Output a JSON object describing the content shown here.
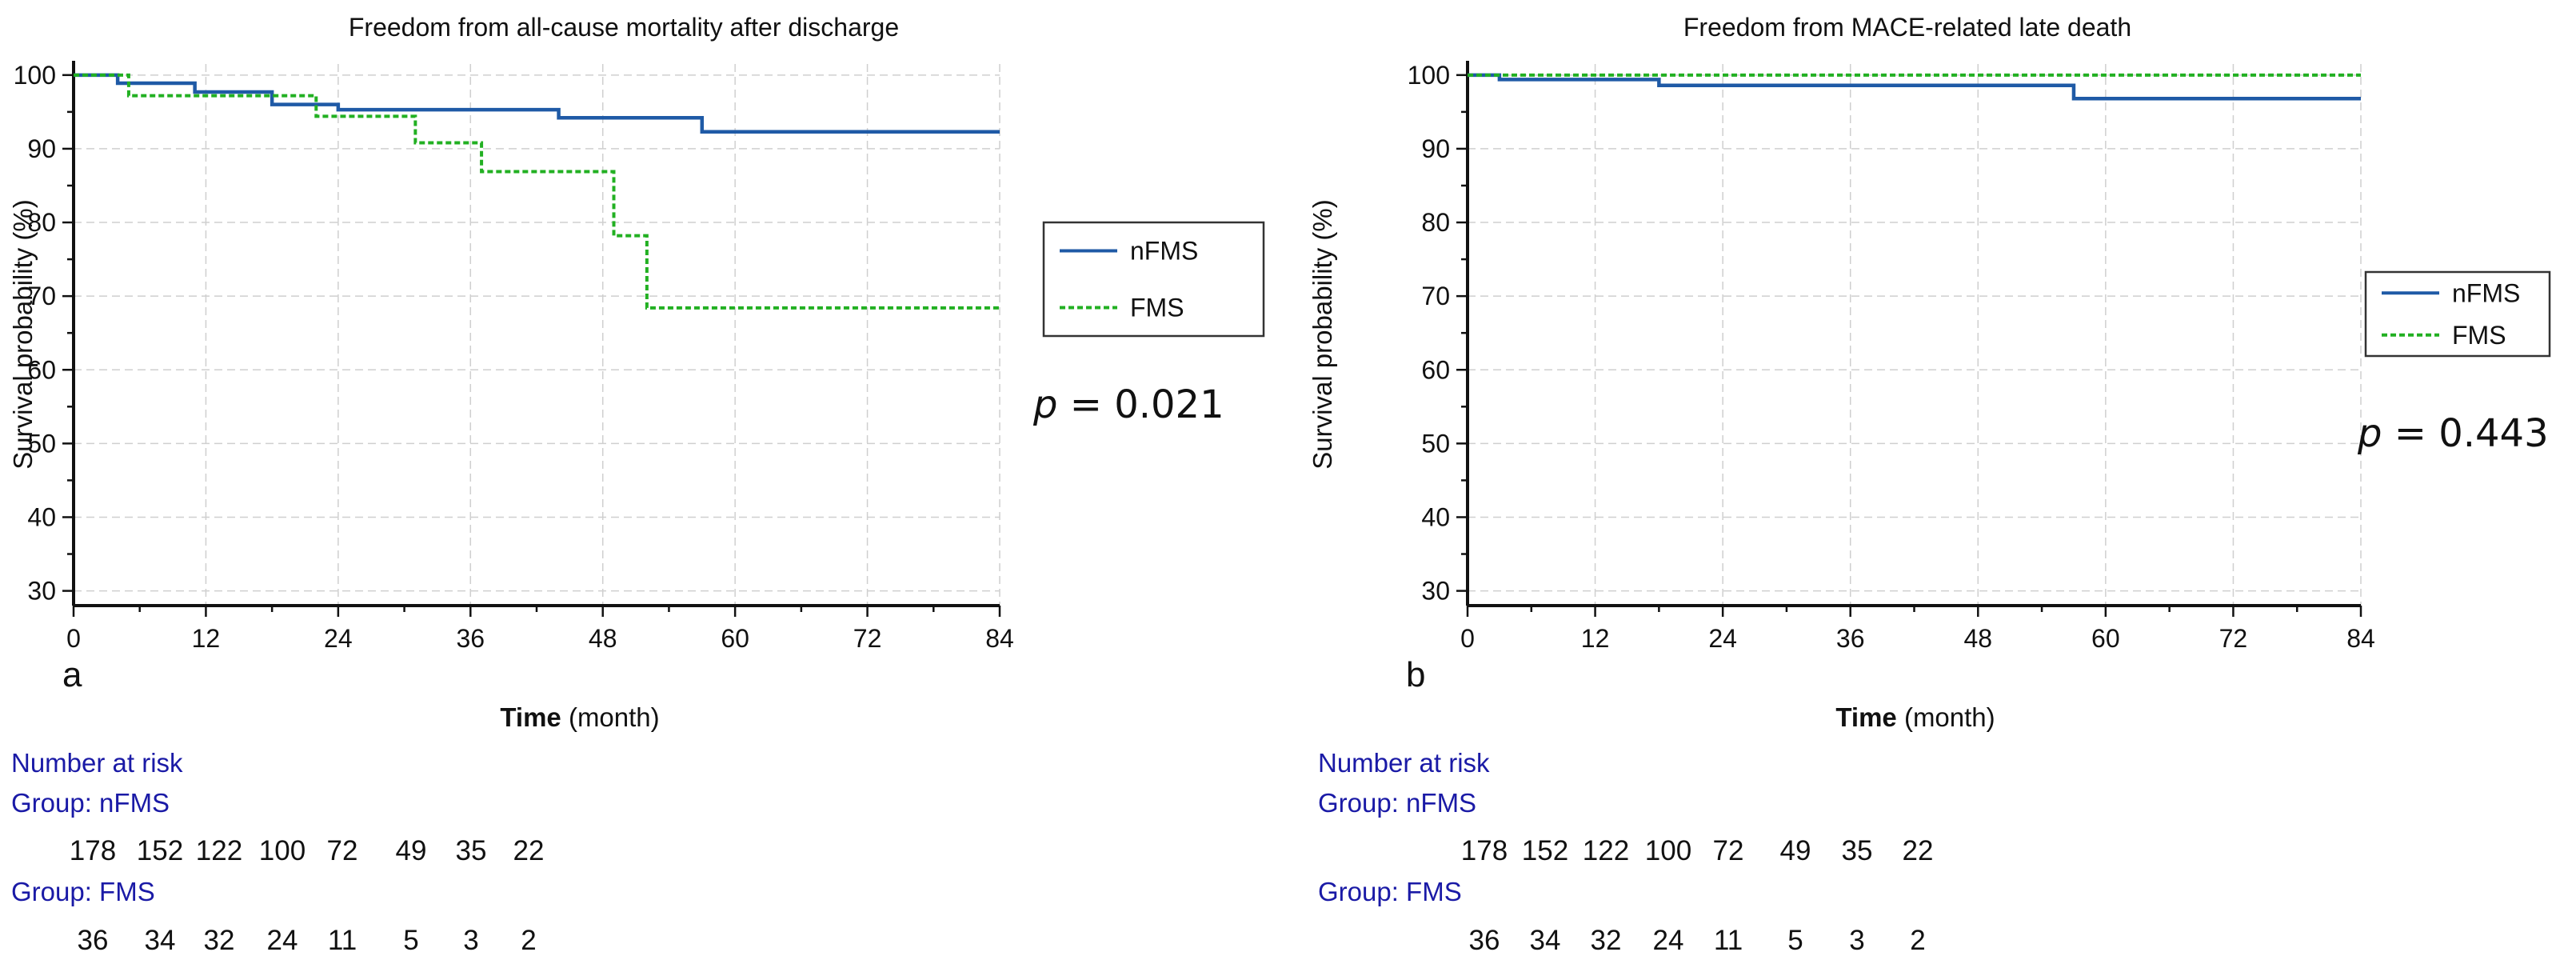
{
  "colors": {
    "nFMS": "#1f5aa6",
    "FMS": "#22b022",
    "axis": "#111111",
    "grid": "#cfcfcf",
    "risk_header": "#1a1aa6"
  },
  "chart_data": [
    {
      "type": "line",
      "panel_label": "a",
      "title": "Freedom from all-cause mortality after discharge",
      "xlabel_bold": "Time",
      "xlabel_unit": " (month)",
      "ylabel": "Survival probability (%)",
      "xlim": [
        0,
        84
      ],
      "ylim": [
        28,
        101.5
      ],
      "xticks": [
        0,
        12,
        24,
        36,
        48,
        60,
        72,
        84
      ],
      "xtick_labels": [
        "0",
        "12",
        "24",
        "36",
        "48",
        "60",
        "72",
        "84"
      ],
      "yticks": [
        30,
        40,
        50,
        60,
        70,
        80,
        90,
        100
      ],
      "ytick_labels": [
        "30",
        "40",
        "50",
        "60",
        "70",
        "80",
        "90",
        "100"
      ],
      "legend_position": "right-upper",
      "p_symbol": "p",
      "p_text": " = 0.021",
      "series": [
        {
          "name": "nFMS",
          "style": "solid",
          "step_x": [
            0,
            4,
            11,
            18,
            24,
            44,
            57,
            84
          ],
          "step_y": [
            100,
            98.9,
            97.7,
            96.0,
            95.3,
            94.2,
            92.3,
            92.3
          ]
        },
        {
          "name": "FMS",
          "style": "dashed",
          "step_x": [
            0,
            5,
            22,
            31,
            37,
            49,
            52,
            84
          ],
          "step_y": [
            100,
            97.2,
            94.4,
            90.8,
            86.9,
            78.2,
            68.4,
            68.4
          ]
        }
      ],
      "risk_table": {
        "header": "Number at risk",
        "groups": [
          {
            "label": "Group: nFMS",
            "counts": [
              "178",
              "152",
              "122",
              "100",
              "72",
              "49",
              "35",
              "22"
            ]
          },
          {
            "label": "Group: FMS",
            "counts": [
              "36",
              "34",
              "32",
              "24",
              "11",
              "5",
              "3",
              "2"
            ]
          }
        ]
      }
    },
    {
      "type": "line",
      "panel_label": "b",
      "title": "Freedom from MACE-related late death",
      "xlabel_bold": "Time",
      "xlabel_unit": " (month)",
      "ylabel": "Survival probability (%)",
      "xlim": [
        0,
        84
      ],
      "ylim": [
        28,
        101.5
      ],
      "xticks": [
        0,
        12,
        24,
        36,
        48,
        60,
        72,
        84
      ],
      "xtick_labels": [
        "0",
        "12",
        "24",
        "36",
        "48",
        "60",
        "72",
        "84"
      ],
      "yticks": [
        30,
        40,
        50,
        60,
        70,
        80,
        90,
        100
      ],
      "ytick_labels": [
        "30",
        "40",
        "50",
        "60",
        "70",
        "80",
        "90",
        "100"
      ],
      "legend_position": "right-upper",
      "p_symbol": "p",
      "p_text": " = 0.443",
      "series": [
        {
          "name": "nFMS",
          "style": "solid",
          "step_x": [
            0,
            3,
            18,
            57,
            84
          ],
          "step_y": [
            100,
            99.4,
            98.6,
            96.8,
            96.8
          ]
        },
        {
          "name": "FMS",
          "style": "dashed",
          "step_x": [
            0,
            84
          ],
          "step_y": [
            100,
            100
          ]
        }
      ],
      "risk_table": {
        "header": "Number at risk",
        "groups": [
          {
            "label": "Group: nFMS",
            "counts": [
              "178",
              "152",
              "122",
              "100",
              "72",
              "49",
              "35",
              "22"
            ]
          },
          {
            "label": "Group: FMS",
            "counts": [
              "36",
              "34",
              "32",
              "24",
              "11",
              "5",
              "3",
              "2"
            ]
          }
        ]
      }
    }
  ]
}
